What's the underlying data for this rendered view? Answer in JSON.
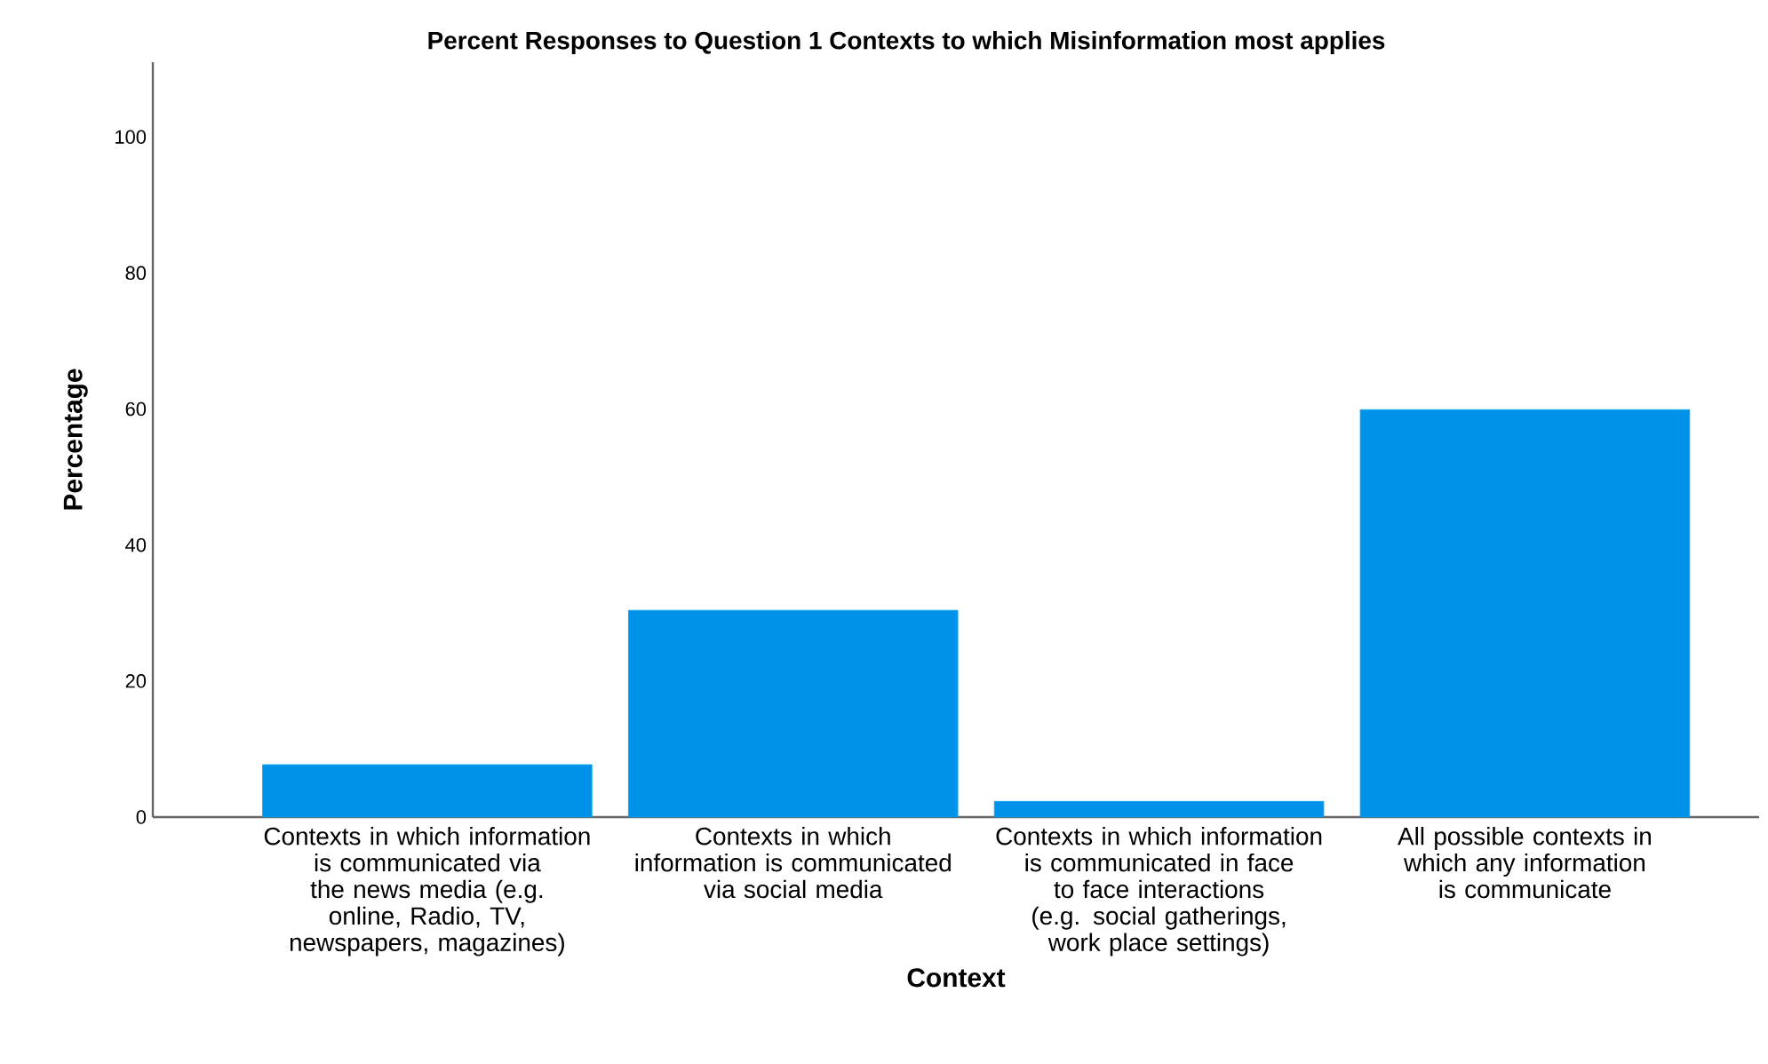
{
  "chart_data": {
    "type": "bar",
    "title": "Percent Responses to Question 1 Contexts to which Misinformation most applies",
    "xlabel": "Context",
    "ylabel": "Percentage",
    "categories": [
      "Contexts in which information is communicated via the news media (e.g. online, Radio, TV, newspapers, magazines)",
      "Contexts in which information is communicated via social media",
      "Contexts in which information is communicated in face to face interactions (e.g. social gatherings, work place settings)",
      "All possible contexts in which any information is communicate"
    ],
    "values": [
      7.7,
      30.4,
      2.3,
      59.9
    ],
    "color": "#0091e8",
    "ylim": [
      0,
      111
    ],
    "yticks": [
      0,
      20,
      40,
      60,
      80,
      100
    ],
    "grid": false
  }
}
